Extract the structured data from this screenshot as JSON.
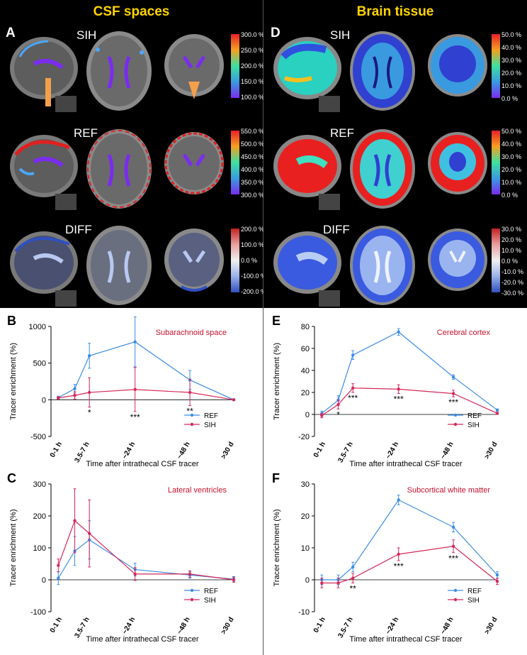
{
  "left_title": "CSF spaces",
  "right_title": "Brain tissue",
  "panels": {
    "A": "A",
    "B": "B",
    "C": "C",
    "D": "D",
    "E": "E",
    "F": "F"
  },
  "rows": [
    "SIH",
    "REF",
    "DIFF"
  ],
  "colorbars": {
    "csf_sih": [
      "300.0 %",
      "250.0 %",
      "200.0 %",
      "150.0 %",
      "100.0 %"
    ],
    "csf_ref": [
      "550.0 %",
      "500.0 %",
      "450.0 %",
      "400.0 %",
      "350.0 %",
      "300.0 %"
    ],
    "csf_diff": [
      "200.0 %",
      "100.0 %",
      "0.0 %",
      "-100.0 %",
      "-200.0 %"
    ],
    "tis_sih": [
      "50.0 %",
      "40.0 %",
      "30.0 %",
      "20.0 %",
      "10.0 %",
      "0.0 %"
    ],
    "tis_ref": [
      "50.0 %",
      "40.0 %",
      "30.0 %",
      "20.0 %",
      "10.0 %",
      "0.0 %"
    ],
    "tis_diff": [
      "30.0 %",
      "20.0 %",
      "10.0 %",
      "0.0 %",
      "-10.0 %",
      "-20.0 %",
      "-30.0 %"
    ]
  },
  "colors": {
    "REF": "#3b8de6",
    "SIH": "#d6285a",
    "title": "#c8102e",
    "yellow": "#ffd400"
  },
  "chart_data": [
    {
      "type": "line",
      "panel": "B",
      "title": "Subarachnoid space",
      "xlabel": "Time after intrathecal CSF tracer",
      "ylabel": "Tracer enrichment (%)",
      "ylim": [
        -500,
        1000
      ],
      "yticks": [
        -500,
        0,
        500,
        1000
      ],
      "categories": [
        "0-1 h",
        "3.5-7 h",
        "~24 h",
        "~48 h",
        ">30 d"
      ],
      "series": [
        {
          "name": "REF",
          "x": [
            0.5,
            2,
            5,
            24,
            48,
            72
          ],
          "y": [
            30,
            150,
            600,
            790,
            270,
            0
          ],
          "err": [
            20,
            60,
            170,
            340,
            130,
            10
          ]
        },
        {
          "name": "SIH",
          "x": [
            0.5,
            2,
            5,
            24,
            48,
            72
          ],
          "y": [
            25,
            60,
            100,
            140,
            100,
            0
          ],
          "err": [
            15,
            50,
            200,
            300,
            180,
            10
          ]
        }
      ],
      "annotations": [
        {
          "x": 5,
          "text": "*"
        },
        {
          "x": 24,
          "text": "***"
        },
        {
          "x": 48,
          "text": "**"
        }
      ]
    },
    {
      "type": "line",
      "panel": "C",
      "title": "Lateral ventricles",
      "xlabel": "Time after intrathecal CSF tracer",
      "ylabel": "Tracer enrichment (%)",
      "ylim": [
        -100,
        300
      ],
      "yticks": [
        -100,
        0,
        100,
        200,
        300
      ],
      "categories": [
        "0-1 h",
        "3.5-7 h",
        "~24 h",
        "~48 h",
        ">30 d"
      ],
      "series": [
        {
          "name": "REF",
          "x": [
            0.5,
            2,
            5,
            24,
            48,
            72
          ],
          "y": [
            5,
            90,
            125,
            32,
            15,
            2
          ],
          "err": [
            20,
            45,
            60,
            20,
            10,
            8
          ]
        },
        {
          "name": "SIH",
          "x": [
            0.5,
            2,
            5,
            24,
            48,
            72
          ],
          "y": [
            45,
            185,
            145,
            18,
            18,
            0
          ],
          "err": [
            20,
            100,
            105,
            20,
            10,
            8
          ]
        }
      ],
      "annotations": []
    },
    {
      "type": "line",
      "panel": "E",
      "title": "Cerebral cortex",
      "xlabel": "Time after intrathecal CSF tracer",
      "ylabel": "Tracer enrichment (%)",
      "ylim": [
        -20,
        80
      ],
      "yticks": [
        -20,
        0,
        20,
        40,
        60,
        80
      ],
      "categories": [
        "0-1 h",
        "3.5-7 h",
        "~24 h",
        "~48 h",
        ">30 d"
      ],
      "series": [
        {
          "name": "REF",
          "x": [
            0.5,
            2,
            5,
            24,
            48,
            72
          ],
          "y": [
            1,
            13,
            54,
            75,
            34,
            4
          ],
          "err": [
            2,
            4,
            4,
            3,
            2,
            1
          ]
        },
        {
          "name": "SIH",
          "x": [
            0.5,
            2,
            5,
            24,
            48,
            72
          ],
          "y": [
            -1,
            9,
            24,
            23,
            19,
            1
          ],
          "err": [
            2,
            4,
            4,
            4,
            3,
            1
          ]
        }
      ],
      "annotations": [
        {
          "x": 2,
          "text": "*"
        },
        {
          "x": 5,
          "text": "***"
        },
        {
          "x": 24,
          "text": "***"
        },
        {
          "x": 48,
          "text": "***"
        }
      ]
    },
    {
      "type": "line",
      "panel": "F",
      "title": "Subcortical white matter",
      "xlabel": "Time after intrathecal CSF tracer",
      "ylabel": "Tracer enrichment (%)",
      "ylim": [
        -10,
        30
      ],
      "yticks": [
        -10,
        0,
        10,
        20,
        30
      ],
      "categories": [
        "0-1 h",
        "3.5-7 h",
        "~24 h",
        "~48 h",
        ">30 d"
      ],
      "series": [
        {
          "name": "REF",
          "x": [
            0.5,
            2,
            5,
            24,
            48,
            72
          ],
          "y": [
            0,
            0,
            4,
            25,
            16.5,
            1.5
          ],
          "err": [
            1.5,
            1.5,
            1.5,
            1.5,
            1.5,
            1
          ]
        },
        {
          "name": "SIH",
          "x": [
            0.5,
            2,
            5,
            24,
            48,
            72
          ],
          "y": [
            -1,
            -1,
            0.5,
            8,
            10.5,
            -0.5
          ],
          "err": [
            1.5,
            1.5,
            1.5,
            2,
            2,
            1
          ]
        }
      ],
      "annotations": [
        {
          "x": 5,
          "text": "**"
        },
        {
          "x": 24,
          "text": "***"
        },
        {
          "x": 48,
          "text": "***"
        }
      ]
    }
  ]
}
